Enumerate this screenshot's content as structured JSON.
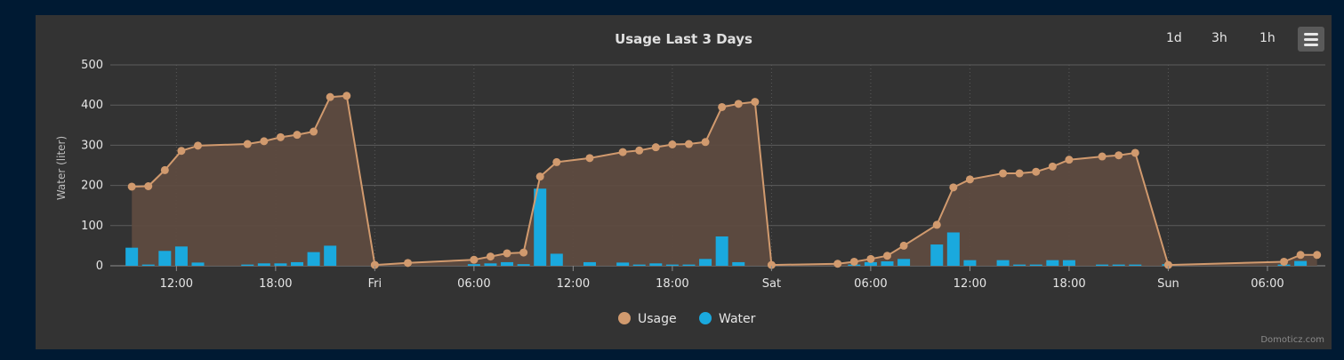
{
  "chart_data": {
    "type": "line+bar",
    "title": "Usage Last 3 Days",
    "ylabel": "Water (liter)",
    "ylim": [
      0,
      500
    ],
    "yticks": [
      0,
      100,
      200,
      300,
      400,
      500
    ],
    "xlim_hours": [
      -16,
      57.5
    ],
    "xticks": [
      {
        "h": -12,
        "label": "12:00"
      },
      {
        "h": -6,
        "label": "18:00"
      },
      {
        "h": 0,
        "label": "Fri"
      },
      {
        "h": 6,
        "label": "06:00"
      },
      {
        "h": 12,
        "label": "12:00"
      },
      {
        "h": 18,
        "label": "18:00"
      },
      {
        "h": 24,
        "label": "Sat"
      },
      {
        "h": 30,
        "label": "06:00"
      },
      {
        "h": 36,
        "label": "12:00"
      },
      {
        "h": 42,
        "label": "18:00"
      },
      {
        "h": 48,
        "label": "Sun"
      },
      {
        "h": 54,
        "label": "06:00"
      }
    ],
    "series": [
      {
        "name": "Usage",
        "type": "area-line",
        "color": "#d19a6e",
        "points": [
          [
            -14.7,
            197
          ],
          [
            -13.7,
            198
          ],
          [
            -12.7,
            238
          ],
          [
            -11.7,
            286
          ],
          [
            -10.7,
            299
          ],
          [
            -7.7,
            303
          ],
          [
            -6.7,
            310
          ],
          [
            -5.7,
            320
          ],
          [
            -4.7,
            326
          ],
          [
            -3.7,
            334
          ],
          [
            -2.7,
            420
          ],
          [
            -1.7,
            423
          ],
          [
            0,
            2
          ],
          [
            2,
            7
          ],
          [
            6,
            15
          ],
          [
            7,
            23
          ],
          [
            8,
            31
          ],
          [
            9,
            33
          ],
          [
            10,
            222
          ],
          [
            11,
            258
          ],
          [
            13,
            268
          ],
          [
            15,
            283
          ],
          [
            16,
            287
          ],
          [
            17,
            295
          ],
          [
            18,
            302
          ],
          [
            19,
            303
          ],
          [
            20,
            308
          ],
          [
            21,
            395
          ],
          [
            22,
            403
          ],
          [
            23,
            408
          ],
          [
            24,
            2
          ],
          [
            28,
            5
          ],
          [
            29,
            10
          ],
          [
            30,
            17
          ],
          [
            31,
            25
          ],
          [
            32,
            50
          ],
          [
            34,
            102
          ],
          [
            35,
            195
          ],
          [
            36,
            215
          ],
          [
            38,
            230
          ],
          [
            39,
            230
          ],
          [
            40,
            234
          ],
          [
            41,
            247
          ],
          [
            42,
            264
          ],
          [
            44,
            272
          ],
          [
            45,
            275
          ],
          [
            46,
            281
          ],
          [
            48,
            2
          ],
          [
            55,
            10
          ],
          [
            56,
            27
          ],
          [
            57,
            27
          ]
        ]
      },
      {
        "name": "Water",
        "type": "bar",
        "color": "#1aa9de",
        "points": [
          [
            -14.7,
            45
          ],
          [
            -13.7,
            3
          ],
          [
            -12.7,
            37
          ],
          [
            -11.7,
            48
          ],
          [
            -10.7,
            8
          ],
          [
            -7.7,
            3
          ],
          [
            -6.7,
            6
          ],
          [
            -5.7,
            6
          ],
          [
            -4.7,
            9
          ],
          [
            -3.7,
            34
          ],
          [
            -2.7,
            50
          ],
          [
            6,
            4
          ],
          [
            7,
            6
          ],
          [
            8,
            9
          ],
          [
            9,
            4
          ],
          [
            10,
            192
          ],
          [
            11,
            30
          ],
          [
            13,
            9
          ],
          [
            15,
            8
          ],
          [
            16,
            3
          ],
          [
            17,
            6
          ],
          [
            18,
            3
          ],
          [
            19,
            3
          ],
          [
            20,
            17
          ],
          [
            21,
            73
          ],
          [
            22,
            9
          ],
          [
            29,
            3
          ],
          [
            30,
            9
          ],
          [
            31,
            11
          ],
          [
            32,
            17
          ],
          [
            34,
            53
          ],
          [
            35,
            83
          ],
          [
            36,
            14
          ],
          [
            38,
            14
          ],
          [
            39,
            3
          ],
          [
            40,
            3
          ],
          [
            41,
            14
          ],
          [
            42,
            14
          ],
          [
            44,
            3
          ],
          [
            45,
            3
          ],
          [
            46,
            3
          ],
          [
            48,
            4
          ],
          [
            55,
            3
          ],
          [
            56,
            12
          ]
        ]
      }
    ],
    "legend": {
      "position": "bottom-center",
      "items": [
        "Usage",
        "Water"
      ]
    }
  },
  "range_buttons": [
    "1d",
    "3h",
    "1h"
  ],
  "credits": "Domoticz.com",
  "colors": {
    "usage": "#d19a6e",
    "water": "#1aa9de",
    "panel": "#333333",
    "page": "#001a33"
  }
}
